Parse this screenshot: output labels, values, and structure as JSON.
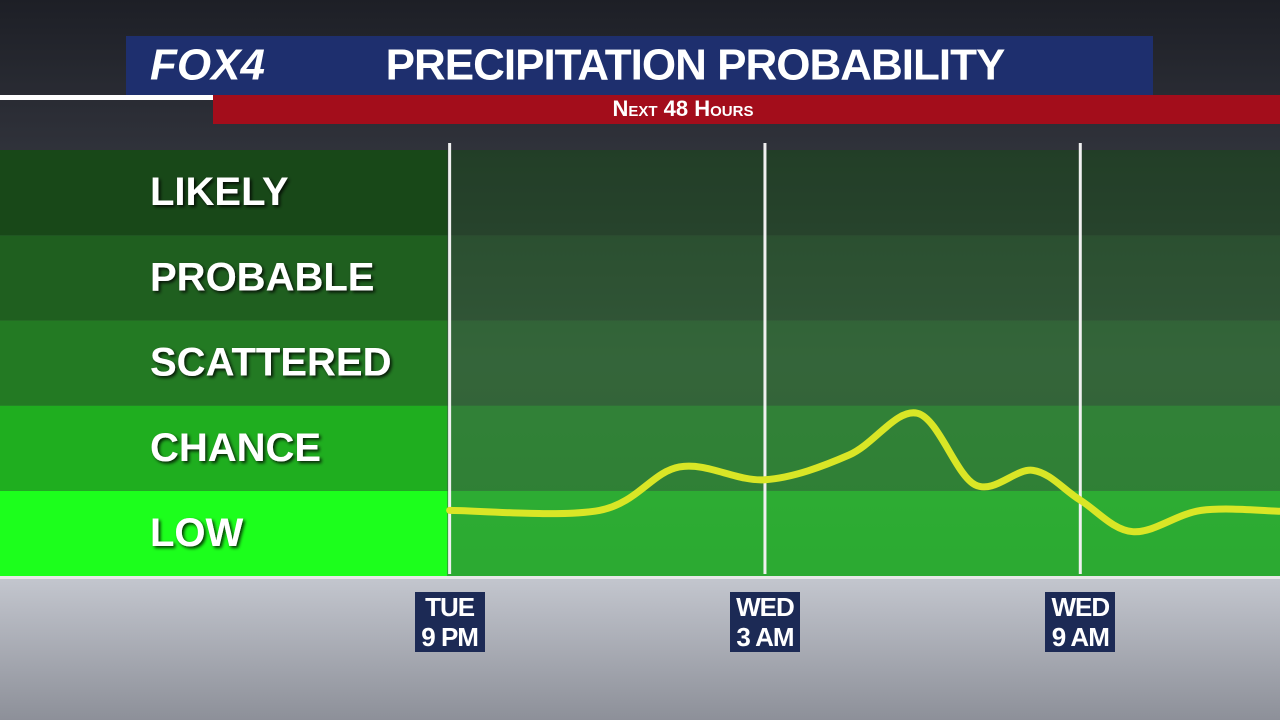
{
  "logo": "FOX4",
  "chart_data": {
    "type": "line",
    "title": "PRECIPITATION PROBABILITY",
    "subtitle": "Next 48 Hours",
    "x": [
      0,
      2.85,
      4.37,
      6,
      7.6,
      8.9,
      10,
      11.1,
      12,
      13,
      14.3,
      15.8
    ],
    "series": [
      {
        "color": "#d9e626",
        "values": [
          0.77,
          0.77,
          1.28,
          1.13,
          1.42,
          1.91,
          1.07,
          1.24,
          0.89,
          0.52,
          0.77,
          0.76
        ]
      }
    ],
    "xlim": [
      -0.05,
      15.8
    ],
    "xticks": [
      {
        "value": 0,
        "label": "TUE\n9 PM"
      },
      {
        "value": 6,
        "label": "WED\n3 AM"
      },
      {
        "value": 12,
        "label": "WED\n9 AM"
      }
    ],
    "ylim": [
      0,
      5
    ],
    "yticks": [
      {
        "value": 0.5,
        "label": "LOW"
      },
      {
        "value": 1.5,
        "label": "CHANCE"
      },
      {
        "value": 2.5,
        "label": "SCATTERED"
      },
      {
        "value": 3.5,
        "label": "PROBABLE"
      },
      {
        "value": 4.5,
        "label": "LIKELY"
      }
    ]
  }
}
